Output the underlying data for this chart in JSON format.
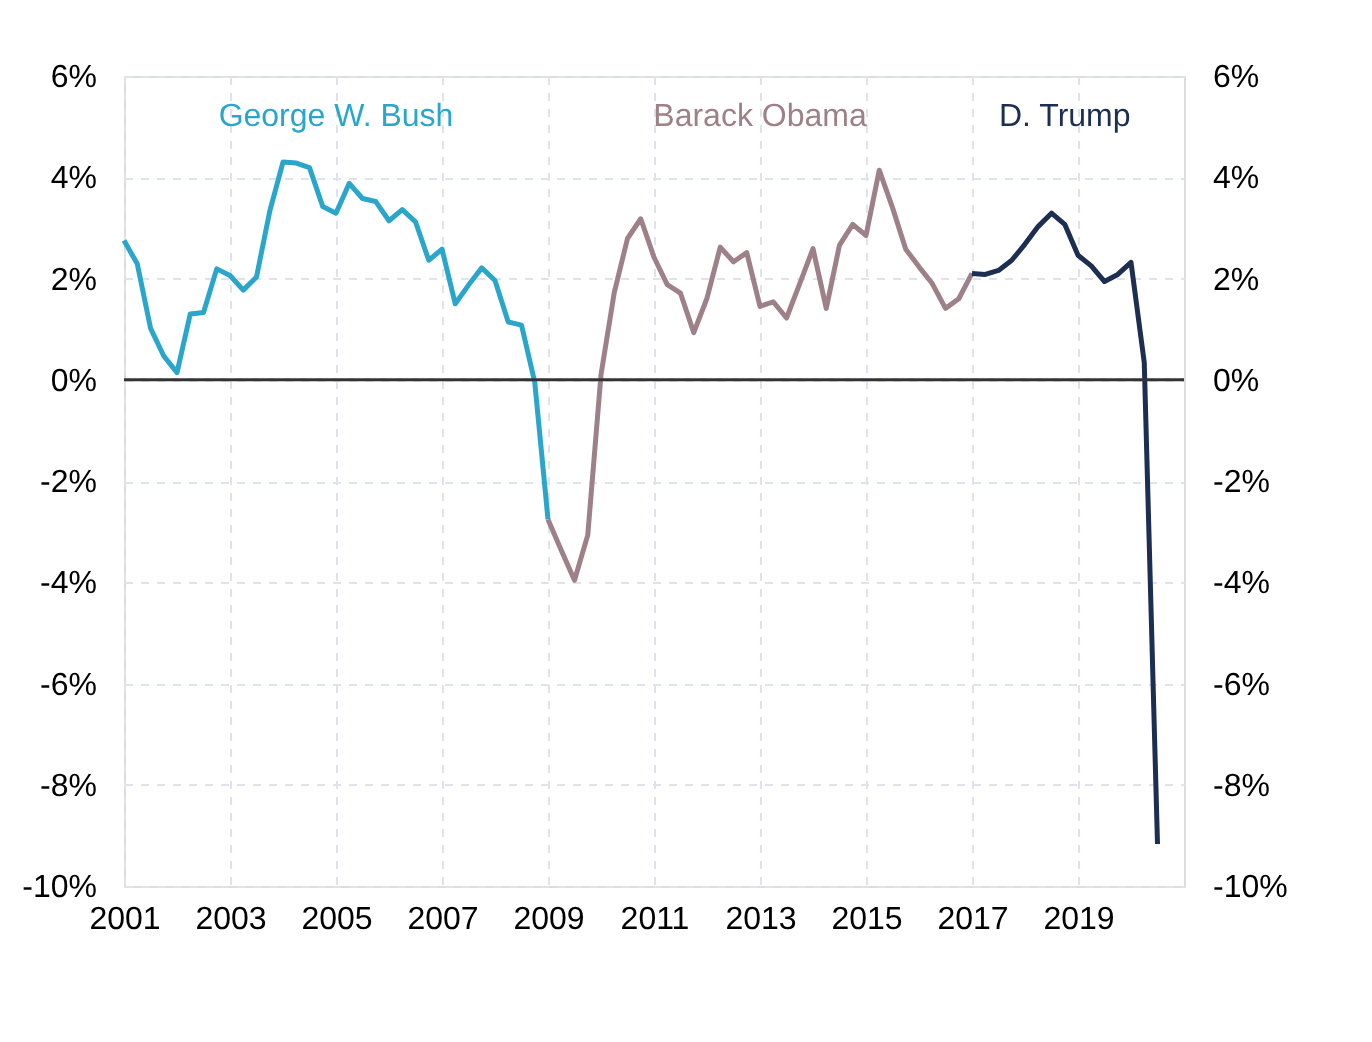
{
  "chart_data": {
    "type": "line",
    "series": [
      {
        "name": "George W. Bush",
        "color": "#2ba6cb",
        "x": [
          2001,
          2001.25,
          2001.5,
          2001.75,
          2002,
          2002.25,
          2002.5,
          2002.75,
          2003,
          2003.25,
          2003.5,
          2003.75,
          2004,
          2004.25,
          2004.5,
          2004.75,
          2005,
          2005.25,
          2005.5,
          2005.75,
          2006,
          2006.25,
          2006.5,
          2006.75,
          2007,
          2007.25,
          2007.5,
          2007.75,
          2008,
          2008.25,
          2008.5,
          2008.75,
          2009
        ],
        "values": [
          2.75,
          2.29,
          1.02,
          0.47,
          0.14,
          1.3,
          1.33,
          2.19,
          2.06,
          1.77,
          2.03,
          3.33,
          4.3,
          4.28,
          4.19,
          3.42,
          3.29,
          3.88,
          3.58,
          3.52,
          3.14,
          3.36,
          3.12,
          2.36,
          2.58,
          1.5,
          1.87,
          2.21,
          1.96,
          1.14,
          1.08,
          -0.05,
          -2.76
        ]
      },
      {
        "name": "Barack Obama",
        "color": "#9e8089",
        "x": [
          2009,
          2009.25,
          2009.5,
          2009.75,
          2010,
          2010.25,
          2010.5,
          2010.75,
          2011,
          2011.25,
          2011.5,
          2011.75,
          2012,
          2012.25,
          2012.5,
          2012.75,
          2013,
          2013.25,
          2013.5,
          2013.75,
          2014,
          2014.25,
          2014.5,
          2014.75,
          2015,
          2015.25,
          2015.5,
          2015.75,
          2016,
          2016.25,
          2016.5,
          2016.75,
          2017
        ],
        "values": [
          -2.76,
          -3.37,
          -3.96,
          -3.07,
          0.1,
          1.72,
          2.79,
          3.18,
          2.42,
          1.88,
          1.71,
          0.93,
          1.61,
          2.62,
          2.33,
          2.51,
          1.45,
          1.54,
          1.22,
          1.9,
          2.59,
          1.41,
          2.66,
          3.07,
          2.85,
          4.14,
          3.4,
          2.58,
          2.23,
          1.9,
          1.41,
          1.6,
          2.1
        ]
      },
      {
        "name": "D. Trump",
        "color": "#1c2e52",
        "x": [
          2017,
          2017.25,
          2017.5,
          2017.75,
          2018,
          2018.25,
          2018.5,
          2018.75,
          2019,
          2019.25,
          2019.5,
          2019.75,
          2020,
          2020.25,
          2020.5
        ],
        "values": [
          2.1,
          2.08,
          2.16,
          2.36,
          2.68,
          3.03,
          3.29,
          3.07,
          2.46,
          2.25,
          1.94,
          2.08,
          2.32,
          0.34,
          -9.17
        ]
      }
    ],
    "xlim": [
      2001,
      2021
    ],
    "xticks": [
      2001,
      2003,
      2005,
      2007,
      2009,
      2011,
      2013,
      2015,
      2017,
      2019
    ],
    "ylim": [
      -10,
      6
    ],
    "yticks": [
      {
        "value": -10,
        "label": "-10%"
      },
      {
        "value": -8,
        "label": "-8%"
      },
      {
        "value": -6,
        "label": "-6%"
      },
      {
        "value": -4,
        "label": "-4%"
      },
      {
        "value": -2,
        "label": "-2%"
      },
      {
        "value": 0,
        "label": "0%"
      },
      {
        "value": 2,
        "label": "2%"
      },
      {
        "value": 4,
        "label": "4%"
      },
      {
        "value": 6,
        "label": "6%"
      }
    ],
    "y2lim": [
      -10,
      6
    ],
    "y2ticks": [
      {
        "value": -10,
        "label": "-10%"
      },
      {
        "value": -8,
        "label": "-8%"
      },
      {
        "value": -6,
        "label": "-6%"
      },
      {
        "value": -4,
        "label": "-4%"
      },
      {
        "value": -2,
        "label": "-2%"
      },
      {
        "value": 0,
        "label": "0%"
      },
      {
        "value": 2,
        "label": "2%"
      },
      {
        "value": 4,
        "label": "4%"
      },
      {
        "value": 6,
        "label": "6%"
      }
    ],
    "ref_lines": [
      {
        "axis": "y",
        "value": 0,
        "color": "#333333"
      }
    ],
    "grid": true,
    "marker": "none",
    "line_style": "solid"
  }
}
